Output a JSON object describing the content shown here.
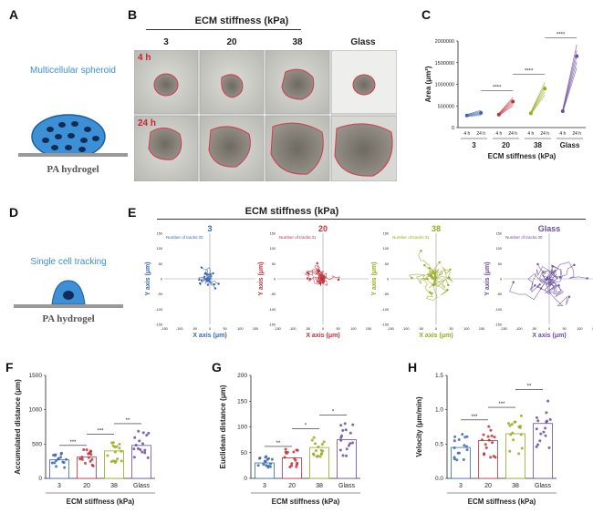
{
  "panels": {
    "A": "A",
    "B": "B",
    "C": "C",
    "D": "D",
    "E": "E",
    "F": "F",
    "G": "G",
    "H": "H"
  },
  "colors": {
    "c3": "#3a66b0",
    "c20": "#c0303a",
    "c38": "#9aa820",
    "cglass": "#6a4ca0",
    "schematic_blue": "#3d8fd6",
    "outline_red": "#d23a4f"
  },
  "schematic_A": {
    "title": "Multicellular spheroid",
    "base": "PA hydrogel"
  },
  "schematic_D": {
    "title": "Single cell tracking",
    "base": "PA hydrogel"
  },
  "panel_B": {
    "header": "ECM stiffness (kPa)",
    "columns": [
      "3",
      "20",
      "38",
      "Glass"
    ],
    "rows": [
      "4 h",
      "24 h"
    ]
  },
  "panel_E": {
    "header": "ECM stiffness (kPa)",
    "plots": [
      {
        "title": "3",
        "tracks_label": "Number of tracks:33"
      },
      {
        "title": "20",
        "tracks_label": "Number of tracks:31"
      },
      {
        "title": "38",
        "tracks_label": "Number of tracks:31"
      },
      {
        "title": "Glass",
        "tracks_label": "Number of tracks:30"
      }
    ],
    "xlabel": "X axis (μm)",
    "ylabel": "Y axis (μm)",
    "ticks": [
      "-150",
      "-100",
      "-50",
      "0",
      "50",
      "100",
      "150"
    ]
  },
  "chart_data": [
    {
      "id": "C",
      "type": "line",
      "ylabel": "Area (μm²)",
      "xlabel": "ECM stiffness (kPa)",
      "yticks": [
        "0",
        "500000",
        "1000000",
        "1500000",
        "2000000"
      ],
      "ylim": [
        0,
        2000000
      ],
      "time_labels": [
        "4 h",
        "24 h"
      ],
      "groups": [
        "3",
        "20",
        "38",
        "Glass"
      ],
      "series": [
        {
          "name": "3",
          "values_4h": 280000,
          "values_24h": 340000
        },
        {
          "name": "20",
          "values_4h": 300000,
          "values_24h": 600000
        },
        {
          "name": "38",
          "values_4h": 330000,
          "values_24h": 900000
        },
        {
          "name": "Glass",
          "values_4h": 380000,
          "values_24h": 1650000
        }
      ],
      "significance": [
        "****",
        "****",
        "****"
      ]
    },
    {
      "id": "F",
      "type": "bar",
      "ylabel": "Accumulated distance (μm)",
      "xlabel": "ECM stiffness (kPa)",
      "categories": [
        "3",
        "20",
        "38",
        "Glass"
      ],
      "values": [
        270,
        310,
        400,
        480
      ],
      "yticks": [
        "0",
        "500",
        "1000",
        "1500"
      ],
      "ylim": [
        0,
        1500
      ],
      "significance": [
        "***",
        "***",
        "**"
      ]
    },
    {
      "id": "G",
      "type": "bar",
      "ylabel": "Euclidean distance (μm)",
      "xlabel": "ECM stiffness (kPa)",
      "categories": [
        "3",
        "20",
        "38",
        "Glass"
      ],
      "values": [
        30,
        40,
        60,
        75
      ],
      "yticks": [
        "0",
        "50",
        "100",
        "150",
        "200"
      ],
      "ylim": [
        0,
        200
      ],
      "significance": [
        "**",
        "*",
        "*"
      ]
    },
    {
      "id": "H",
      "type": "bar",
      "ylabel": "Velocity (μm/min)",
      "xlabel": "ECM stiffness (kPa)",
      "categories": [
        "3",
        "20",
        "38",
        "Glass"
      ],
      "values": [
        0.45,
        0.55,
        0.65,
        0.8
      ],
      "yticks": [
        "0.0",
        "0.5",
        "1.0",
        "1.5"
      ],
      "ylim": [
        0,
        1.5
      ],
      "significance": [
        "***",
        "***",
        "**"
      ]
    }
  ]
}
